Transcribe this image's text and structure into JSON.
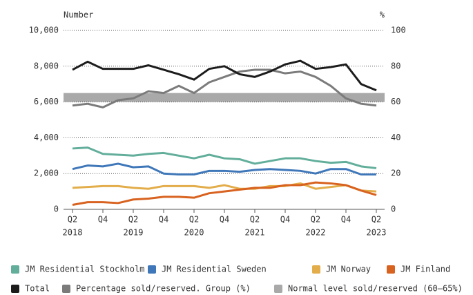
{
  "chart_data": {
    "type": "line",
    "y_axis_label": "Number",
    "y2_axis_label": "%",
    "categories": [
      "Q2",
      null,
      "Q4",
      null,
      "Q2",
      null,
      "Q4",
      null,
      "Q2",
      null,
      "Q4",
      null,
      "Q2",
      null,
      "Q4",
      null,
      "Q2",
      null,
      "Q4",
      null,
      "Q2"
    ],
    "category_years": [
      "2018",
      null,
      null,
      null,
      "2019",
      null,
      null,
      null,
      "2020",
      null,
      null,
      null,
      "2021",
      null,
      null,
      null,
      "2022",
      null,
      null,
      null,
      "2023"
    ],
    "ylim": [
      0,
      10000
    ],
    "yticks": [
      0,
      {
        "value": 2000,
        "label": "2,000"
      },
      {
        "value": 4000,
        "label": "4,000"
      },
      {
        "value": 6000,
        "label": "6,000"
      },
      {
        "value": 8000,
        "label": "8,000"
      },
      {
        "value": 10000,
        "label": "10,000"
      }
    ],
    "y2lim": [
      0,
      100
    ],
    "y2ticks": [
      0,
      20,
      40,
      60,
      80,
      100
    ],
    "grid": true,
    "band": {
      "name": "Normal level sold/reserved (60–65%)",
      "low": 60,
      "high": 65,
      "color": "#a9a9a9"
    },
    "series": [
      {
        "name": "JM Residential Stockholm",
        "color": "#62ae9b",
        "values": [
          3400,
          3450,
          3100,
          3050,
          3000,
          3100,
          3150,
          3000,
          2850,
          3050,
          2850,
          2800,
          2550,
          2700,
          2850,
          2850,
          2700,
          2600,
          2650,
          2400,
          2300
        ]
      },
      {
        "name": "JM Residential Sweden",
        "color": "#3f77b9",
        "values": [
          2250,
          2450,
          2400,
          2550,
          2350,
          2400,
          2000,
          1950,
          1950,
          2150,
          2150,
          2100,
          2200,
          2250,
          2200,
          2150,
          2000,
          2250,
          2250,
          1950,
          1950
        ]
      },
      {
        "name": "JM Norway",
        "color": "#e2ad4a",
        "values": [
          1200,
          1250,
          1300,
          1300,
          1200,
          1150,
          1300,
          1300,
          1300,
          1200,
          1350,
          1150,
          1150,
          1300,
          1300,
          1450,
          1150,
          1250,
          1350,
          1050,
          1000
        ]
      },
      {
        "name": "JM Finland",
        "color": "#d8621f",
        "values": [
          250,
          400,
          400,
          350,
          550,
          600,
          700,
          700,
          650,
          900,
          1000,
          1100,
          1200,
          1200,
          1350,
          1350,
          1500,
          1450,
          1350,
          1050,
          800
        ]
      },
      {
        "name": "Total",
        "color": "#1c1c1c",
        "values": [
          7800,
          8250,
          7850,
          7850,
          7850,
          8050,
          7800,
          7550,
          7250,
          7850,
          8000,
          7550,
          7400,
          7700,
          8100,
          8300,
          7850,
          7950,
          8100,
          7000,
          6650
        ]
      },
      {
        "name": "Percentage sold/reserved. Group (%)",
        "color": "#7b7b7b",
        "axis": "y2",
        "values": [
          58,
          59,
          57,
          61,
          62,
          66,
          65,
          69,
          65,
          71,
          74,
          77,
          78,
          78,
          76,
          77,
          74,
          69,
          62,
          59,
          58
        ]
      }
    ]
  }
}
